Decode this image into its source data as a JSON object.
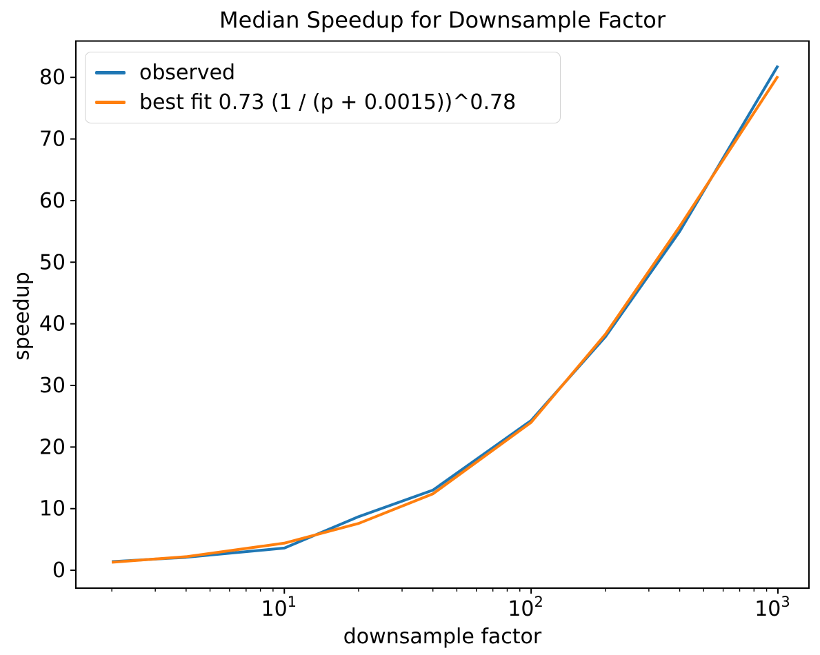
{
  "chart_data": {
    "type": "line",
    "title": "Median Speedup for Downsample Factor",
    "xlabel": "downsample factor",
    "ylabel": "speedup",
    "x_scale": "log",
    "grid": false,
    "legend_position": "upper left",
    "x": [
      2,
      4,
      10,
      20,
      40,
      100,
      200,
      400,
      1000
    ],
    "series": [
      {
        "name": "observed",
        "color": "#1f77b4",
        "values": [
          1.4,
          2.1,
          3.6,
          8.7,
          13.0,
          24.3,
          37.9,
          55.0,
          81.9
        ]
      },
      {
        "name": "best fit 0.73 (1 / (p + 0.0015))^0.78",
        "color": "#ff7f0e",
        "values": [
          1.3,
          2.2,
          4.4,
          7.6,
          12.4,
          24.0,
          38.3,
          55.8,
          80.2
        ]
      }
    ],
    "xlim": [
      1.43,
      1336
    ],
    "ylim": [
      -2.9,
      85.9
    ],
    "yticks": [
      0,
      10,
      20,
      30,
      40,
      50,
      60,
      70,
      80
    ],
    "xticks": [
      {
        "value": 10,
        "base": "10",
        "sup": "1"
      },
      {
        "value": 100,
        "base": "10",
        "sup": "2"
      },
      {
        "value": 1000,
        "base": "10",
        "sup": "3"
      }
    ],
    "axis_color": "#000000",
    "tick_label_color": "#000000"
  }
}
